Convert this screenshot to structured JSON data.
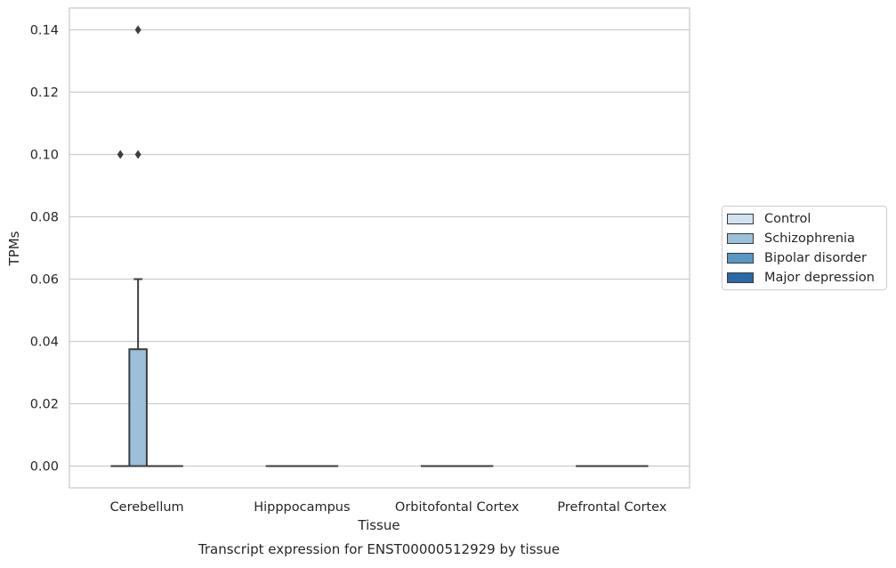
{
  "chart_data": {
    "type": "box",
    "title": "Transcript expression for ENST00000512929 by tissue",
    "xlabel": "Tissue",
    "ylabel": "TPMs",
    "ylim": [
      -0.007,
      0.147
    ],
    "yticks": [
      "0.00",
      "0.02",
      "0.04",
      "0.06",
      "0.08",
      "0.10",
      "0.12",
      "0.14"
    ],
    "ytick_values": [
      0,
      0.02,
      0.04,
      0.06,
      0.08,
      0.1,
      0.12,
      0.14
    ],
    "categories": [
      "Cerebellum",
      "Hipppocampus",
      "Orbitofontal Cortex",
      "Prefrontal Cortex"
    ],
    "grid": "horizontal",
    "legend_position": "right",
    "series": [
      {
        "name": "Control",
        "color": "#d1e2f1",
        "boxes": [
          {
            "category": "Cerebellum",
            "min": 0,
            "q1": 0,
            "median": 0,
            "q3": 0,
            "max": 0,
            "outliers": [
              0.1
            ]
          },
          {
            "category": "Hipppocampus",
            "min": 0,
            "q1": 0,
            "median": 0,
            "q3": 0,
            "max": 0,
            "outliers": []
          },
          {
            "category": "Orbitofontal Cortex",
            "min": 0,
            "q1": 0,
            "median": 0,
            "q3": 0,
            "max": 0,
            "outliers": []
          },
          {
            "category": "Prefrontal Cortex",
            "min": 0,
            "q1": 0,
            "median": 0,
            "q3": 0,
            "max": 0,
            "outliers": []
          }
        ]
      },
      {
        "name": "Schizophrenia",
        "color": "#9ac0db",
        "boxes": [
          {
            "category": "Cerebellum",
            "min": 0,
            "q1": 0,
            "median": 0,
            "q3": 0.0375,
            "max": 0.06,
            "outliers": [
              0.1,
              0.14
            ]
          },
          {
            "category": "Hipppocampus",
            "min": 0,
            "q1": 0,
            "median": 0,
            "q3": 0,
            "max": 0,
            "outliers": []
          },
          {
            "category": "Orbitofontal Cortex",
            "min": 0,
            "q1": 0,
            "median": 0,
            "q3": 0,
            "max": 0,
            "outliers": []
          },
          {
            "category": "Prefrontal Cortex",
            "min": 0,
            "q1": 0,
            "median": 0,
            "q3": 0,
            "max": 0,
            "outliers": []
          }
        ]
      },
      {
        "name": "Bipolar disorder",
        "color": "#5a96c3",
        "boxes": [
          {
            "category": "Cerebellum",
            "min": 0,
            "q1": 0,
            "median": 0,
            "q3": 0,
            "max": 0,
            "outliers": []
          },
          {
            "category": "Hipppocampus",
            "min": 0,
            "q1": 0,
            "median": 0,
            "q3": 0,
            "max": 0,
            "outliers": []
          },
          {
            "category": "Orbitofontal Cortex",
            "min": 0,
            "q1": 0,
            "median": 0,
            "q3": 0,
            "max": 0,
            "outliers": []
          },
          {
            "category": "Prefrontal Cortex",
            "min": 0,
            "q1": 0,
            "median": 0,
            "q3": 0,
            "max": 0,
            "outliers": []
          }
        ]
      },
      {
        "name": "Major depression",
        "color": "#2a68a7",
        "boxes": [
          {
            "category": "Cerebellum",
            "min": 0,
            "q1": 0,
            "median": 0,
            "q3": 0,
            "max": 0,
            "outliers": []
          },
          {
            "category": "Hipppocampus",
            "min": 0,
            "q1": 0,
            "median": 0,
            "q3": 0,
            "max": 0,
            "outliers": []
          },
          {
            "category": "Orbitofontal Cortex",
            "min": 0,
            "q1": 0,
            "median": 0,
            "q3": 0,
            "max": 0,
            "outliers": []
          },
          {
            "category": "Prefrontal Cortex",
            "min": 0,
            "q1": 0,
            "median": 0,
            "q3": 0,
            "max": 0,
            "outliers": []
          }
        ]
      }
    ]
  }
}
